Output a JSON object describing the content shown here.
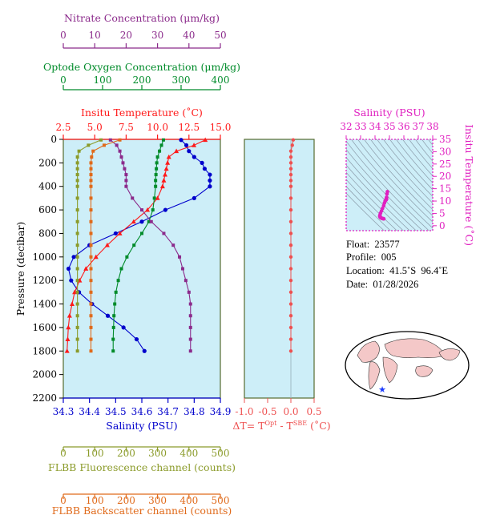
{
  "colors": {
    "nitrate": "#8b2a8b",
    "oxygen": "#008b2a",
    "temperature": "#ff1a1a",
    "salinity": "#0000cc",
    "fluorescence": "#8b9b2a",
    "backscatter": "#e06a1a",
    "delta": "#ee5050",
    "panel_bg": "#cdeef8",
    "ts": "#e020c0"
  },
  "info": {
    "float": "Float:  23577",
    "profile": "Profile:  005",
    "location": "Location:  41.5˚S  96.4˚E",
    "date": "Date:  01/28/2026"
  },
  "chart_data": [
    {
      "type": "line",
      "title": "",
      "ylabel": "Pressure (decibar)",
      "ylim": [
        2200,
        0
      ],
      "yticks": [
        "0",
        "200",
        "400",
        "600",
        "800",
        "1000",
        "1200",
        "1400",
        "1600",
        "1800",
        "2000",
        "2200"
      ],
      "pressure": [
        5,
        50,
        100,
        150,
        200,
        250,
        300,
        350,
        400,
        500,
        600,
        700,
        800,
        900,
        1000,
        1100,
        1200,
        1300,
        1400,
        1500,
        1600,
        1700,
        1800
      ],
      "axes": [
        {
          "key": "nitrate",
          "label": "Nitrate Concentration (μm/kg)",
          "range": [
            0,
            50
          ],
          "ticks": [
            "0",
            "10",
            "20",
            "30",
            "40",
            "50"
          ]
        },
        {
          "key": "oxygen",
          "label": "Optode Oxygen Concentration (μm/kg)",
          "range": [
            0,
            400
          ],
          "ticks": [
            "0",
            "100",
            "200",
            "300",
            "400"
          ]
        },
        {
          "key": "temperature",
          "label": "Insitu Temperature (˚C)",
          "range": [
            2.5,
            15.0
          ],
          "ticks": [
            "2.5",
            "5.0",
            "7.5",
            "10.0",
            "12.5",
            "15.0"
          ]
        },
        {
          "key": "salinity",
          "label": "Salinity (PSU)",
          "range": [
            34.3,
            34.9
          ],
          "ticks": [
            "34.3",
            "34.4",
            "34.5",
            "34.6",
            "34.7",
            "34.8",
            "34.9"
          ]
        },
        {
          "key": "fluorescence",
          "label": "FLBB Fluorescence channel (counts)",
          "range": [
            0,
            500
          ],
          "ticks": [
            "0",
            "100",
            "200",
            "300",
            "400",
            "500"
          ]
        },
        {
          "key": "backscatter",
          "label": "FLBB Backscatter channel (counts)",
          "range": [
            0,
            500
          ],
          "ticks": [
            "0",
            "100",
            "200",
            "300",
            "400",
            "500"
          ]
        }
      ],
      "series": [
        {
          "key": "salinity",
          "values": [
            34.75,
            34.77,
            34.78,
            34.8,
            34.83,
            34.84,
            34.86,
            34.86,
            34.86,
            34.8,
            34.69,
            34.6,
            34.5,
            34.4,
            34.34,
            34.32,
            34.33,
            34.36,
            34.41,
            34.47,
            34.53,
            34.58,
            34.61
          ]
        },
        {
          "key": "temperature",
          "values": [
            13.8,
            12.9,
            11.5,
            10.9,
            10.8,
            10.7,
            10.6,
            10.5,
            10.4,
            10.0,
            9.2,
            8.1,
            7.0,
            6.0,
            5.1,
            4.3,
            3.8,
            3.4,
            3.2,
            3.0,
            2.9,
            2.85,
            2.8
          ]
        },
        {
          "key": "oxygen",
          "values": [
            255,
            250,
            245,
            240,
            238,
            237,
            236,
            235,
            235,
            232,
            228,
            218,
            200,
            180,
            162,
            148,
            140,
            134,
            131,
            129,
            128,
            127,
            127
          ]
        },
        {
          "key": "nitrate",
          "values": [
            15,
            17,
            18,
            18.5,
            19,
            19.5,
            20,
            20,
            20,
            22,
            25,
            28,
            32,
            35,
            37,
            38,
            39,
            40,
            40.5,
            40.5,
            40.5,
            40.5,
            40.5
          ]
        },
        {
          "key": "fluorescence",
          "values": [
            120,
            80,
            50,
            45,
            45,
            45,
            45,
            45,
            45,
            45,
            45,
            45,
            45,
            45,
            45,
            45,
            45,
            45,
            45,
            45,
            45,
            45,
            45
          ]
        },
        {
          "key": "backscatter",
          "values": [
            180,
            130,
            95,
            90,
            88,
            88,
            88,
            88,
            88,
            88,
            88,
            88,
            88,
            88,
            88,
            88,
            88,
            88,
            88,
            88,
            88,
            88,
            88
          ]
        }
      ]
    },
    {
      "type": "line",
      "xlabel_pre": "ΔT= T",
      "xlabel_sup1": "Opt",
      "xlabel_mid": " - T",
      "xlabel_sup2": "SBE",
      "xlabel_post": " (˚C)",
      "xlim": [
        -1.0,
        0.5
      ],
      "xticks": [
        "-1.0",
        "-0.5",
        "0.0",
        "0.5"
      ],
      "ylim": [
        2200,
        0
      ],
      "pressure": [
        5,
        50,
        100,
        150,
        200,
        250,
        300,
        350,
        400,
        500,
        600,
        700,
        800,
        900,
        1000,
        1100,
        1200,
        1300,
        1400,
        1500,
        1600,
        1700,
        1800
      ],
      "values": [
        0.05,
        0.03,
        0.0,
        0.0,
        0.0,
        0.0,
        0.0,
        0.0,
        0.0,
        0.0,
        0.0,
        0.0,
        0.0,
        0.0,
        0.0,
        0.0,
        0.0,
        0.0,
        0.0,
        0.0,
        0.0,
        0.0,
        0.0
      ]
    },
    {
      "type": "scatter",
      "xlabel": "Salinity (PSU)",
      "ylabel": "Insitu Temperature (˚C)",
      "xlim": [
        32,
        38
      ],
      "ylim": [
        -2,
        35
      ],
      "xticks": [
        "32",
        "33",
        "34",
        "35",
        "36",
        "37",
        "38"
      ],
      "yticks": [
        "0",
        "5",
        "10",
        "15",
        "20",
        "25",
        "30",
        "35"
      ],
      "points": [
        [
          34.86,
          13.8
        ],
        [
          34.83,
          12.9
        ],
        [
          34.8,
          11.5
        ],
        [
          34.78,
          10.9
        ],
        [
          34.8,
          10.8
        ],
        [
          34.78,
          10.6
        ],
        [
          34.76,
          10.4
        ],
        [
          34.7,
          10.0
        ],
        [
          34.65,
          9.2
        ],
        [
          34.6,
          8.1
        ],
        [
          34.52,
          7.0
        ],
        [
          34.45,
          6.0
        ],
        [
          34.38,
          5.1
        ],
        [
          34.34,
          4.3
        ],
        [
          34.33,
          3.8
        ],
        [
          34.36,
          3.4
        ],
        [
          34.41,
          3.2
        ],
        [
          34.47,
          3.0
        ],
        [
          34.53,
          2.9
        ],
        [
          34.58,
          2.85
        ],
        [
          34.61,
          2.8
        ]
      ]
    }
  ]
}
